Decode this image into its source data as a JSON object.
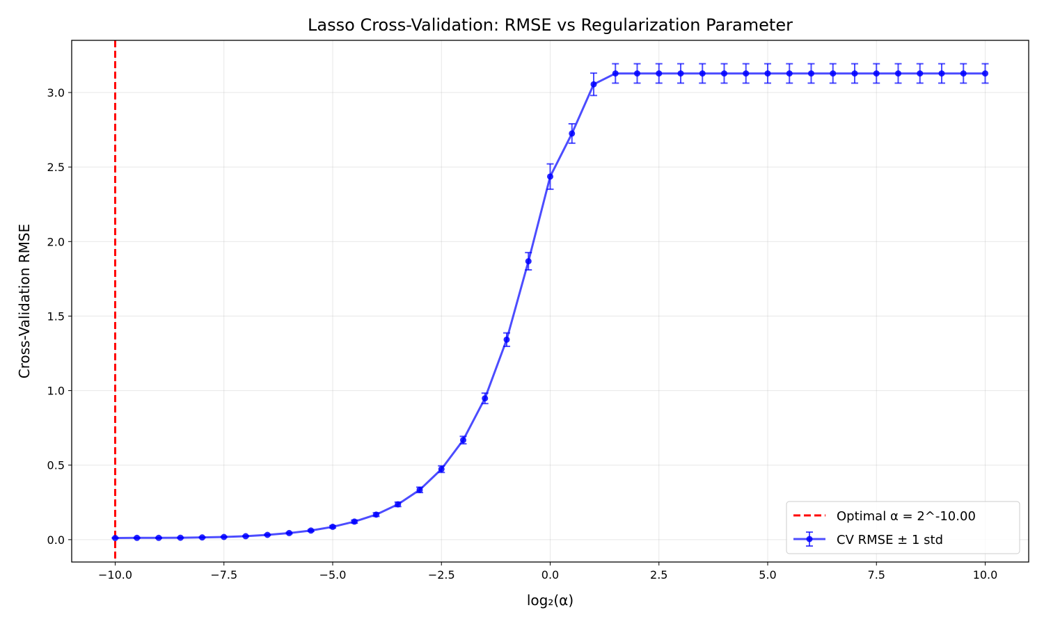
{
  "chart_data": {
    "type": "line",
    "title": "Lasso Cross-Validation: RMSE vs Regularization Parameter",
    "xlabel": "log₂(α)",
    "ylabel": "Cross-Validation RMSE",
    "xlim": [
      -11.0,
      11.0
    ],
    "ylim": [
      -0.15,
      3.35
    ],
    "x_ticks": [
      -10,
      -7.5,
      -5,
      -2.5,
      0,
      2.5,
      5,
      7.5,
      10
    ],
    "x_tick_labels": [
      "−10.0",
      "−7.5",
      "−5.0",
      "−2.5",
      "0.0",
      "2.5",
      "5.0",
      "7.5",
      "10.0"
    ],
    "y_ticks": [
      0,
      0.5,
      1,
      1.5,
      2,
      2.5,
      3
    ],
    "y_tick_labels": [
      "0.0",
      "0.5",
      "1.0",
      "1.5",
      "2.0",
      "2.5",
      "3.0"
    ],
    "grid": true,
    "legend_position": "bottom-right",
    "series": [
      {
        "name": "CV RMSE ± 1 std",
        "color": "#0000ff",
        "x": [
          -10,
          -9.5,
          -9,
          -8.5,
          -8,
          -7.5,
          -7,
          -6.5,
          -6,
          -5.5,
          -5,
          -4.5,
          -4,
          -3.5,
          -3,
          -2.5,
          -2,
          -1.5,
          -1,
          -0.5,
          0,
          0.5,
          1,
          1.5,
          2,
          2.5,
          3,
          3.5,
          4,
          4.5,
          5,
          5.5,
          6,
          6.5,
          7,
          7.5,
          8,
          8.5,
          9,
          9.5,
          10
        ],
        "y": [
          0.011,
          0.012,
          0.012,
          0.013,
          0.015,
          0.018,
          0.023,
          0.032,
          0.044,
          0.061,
          0.086,
          0.121,
          0.168,
          0.237,
          0.334,
          0.473,
          0.668,
          0.948,
          1.342,
          1.868,
          2.436,
          2.725,
          3.055,
          3.128,
          3.128,
          3.128,
          3.128,
          3.128,
          3.128,
          3.128,
          3.128,
          3.128,
          3.128,
          3.128,
          3.128,
          3.128,
          3.128,
          3.128,
          3.128,
          3.128,
          3.128
        ],
        "std": [
          0.003,
          0.003,
          0.003,
          0.003,
          0.003,
          0.003,
          0.003,
          0.004,
          0.005,
          0.006,
          0.008,
          0.01,
          0.012,
          0.015,
          0.018,
          0.022,
          0.025,
          0.035,
          0.045,
          0.058,
          0.085,
          0.065,
          0.075,
          0.065,
          0.065,
          0.065,
          0.065,
          0.065,
          0.065,
          0.065,
          0.065,
          0.065,
          0.065,
          0.065,
          0.065,
          0.065,
          0.065,
          0.065,
          0.065,
          0.065,
          0.065
        ]
      },
      {
        "name": "Optimal α = 2^-10.00",
        "color": "#ff0000",
        "type": "vline",
        "x": -10
      }
    ]
  }
}
